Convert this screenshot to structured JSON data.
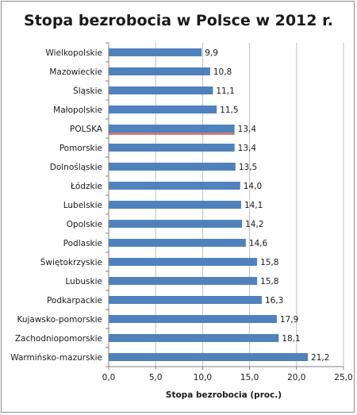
{
  "colors": {
    "bar": "#4f81bd",
    "highlight": "#c0504d",
    "grid": "#bfbfbf",
    "axis": "#808080",
    "text": "#1a1a1a"
  },
  "chart_data": {
    "type": "bar",
    "orientation": "horizontal",
    "title": "Stopa bezrobocia w Polsce w 2012 r.",
    "xlabel": "Stopa bezrobocia (proc.)",
    "ylabel": "",
    "xlim": [
      0,
      25
    ],
    "x_ticks": [
      "0,0",
      "5,0",
      "10,0",
      "15,0",
      "20,0",
      "25,0"
    ],
    "grid": true,
    "legend": "none",
    "highlighted_category": "POLSKA",
    "categories": [
      "Wielkopolskie",
      "Mazowieckie",
      "Śląskie",
      "Małopolskie",
      "POLSKA",
      "Pomorskie",
      "Dolnośląskie",
      "Łódzkie",
      "Lubelskie",
      "Opolskie",
      "Podlaskie",
      "Świętokrzyskie",
      "Lubuskie",
      "Podkarpackie",
      "Kujawsko-pomorskie",
      "Zachodniopomorskie",
      "Warmińsko-mazurskie"
    ],
    "values": [
      9.9,
      10.8,
      11.1,
      11.5,
      13.4,
      13.4,
      13.5,
      14.0,
      14.1,
      14.2,
      14.6,
      15.8,
      15.8,
      16.3,
      17.9,
      18.1,
      21.2
    ],
    "value_labels": [
      "9,9",
      "10,8",
      "11,1",
      "11,5",
      "13,4",
      "13,4",
      "13,5",
      "14,0",
      "14,1",
      "14,2",
      "14,6",
      "15,8",
      "15,8",
      "16,3",
      "17,9",
      "18,1",
      "21,2"
    ]
  }
}
